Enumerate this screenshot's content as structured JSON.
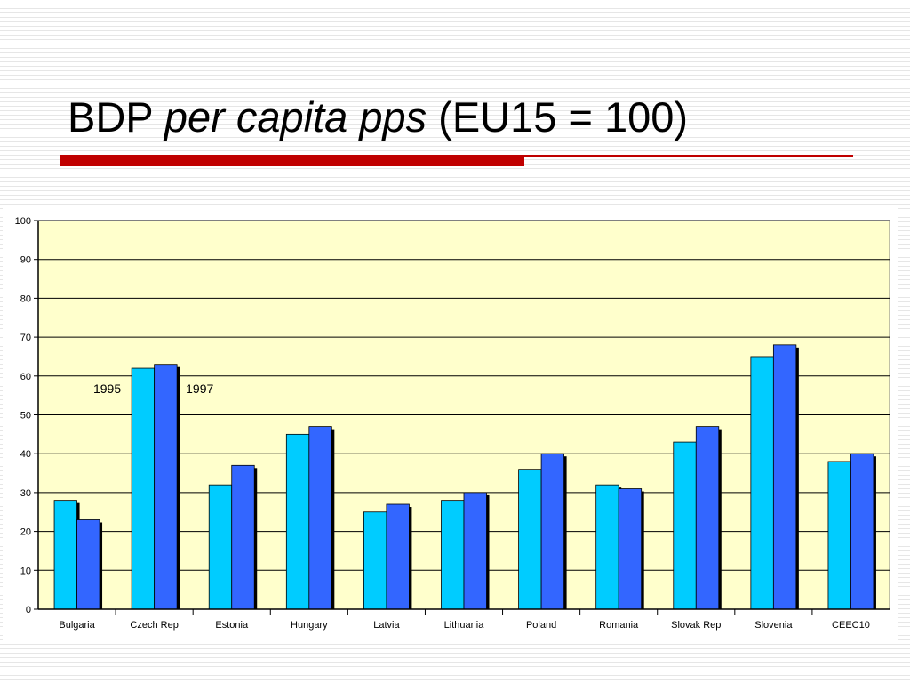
{
  "slide": {
    "title_prefix": "BDP",
    "title_italic": "per capita pps",
    "title_suffix": "(EU15 = 100)"
  },
  "colors": {
    "title_bar": "#c00000",
    "plot_background": "#ffffcc",
    "series_1995": "#00ccff",
    "series_1997": "#3366ff"
  },
  "chart_data": {
    "type": "bar",
    "categories": [
      "Bulgaria",
      "Czech Rep",
      "Estonia",
      "Hungary",
      "Latvia",
      "Lithuania",
      "Poland",
      "Romania",
      "Slovak Rep",
      "Slovenia",
      "CEEC10"
    ],
    "series": [
      {
        "name": "1995",
        "values": [
          28,
          62,
          32,
          45,
          25,
          28,
          36,
          32,
          43,
          65,
          38
        ]
      },
      {
        "name": "1997",
        "values": [
          23,
          63,
          37,
          47,
          27,
          30,
          40,
          31,
          47,
          68,
          40
        ]
      }
    ],
    "ylim": [
      0,
      100
    ],
    "yticks": [
      0,
      10,
      20,
      30,
      40,
      50,
      60,
      70,
      80,
      90,
      100
    ],
    "grid": true,
    "legend": "inline labels above Czech Rep bars",
    "title": "",
    "xlabel": "",
    "ylabel": ""
  }
}
